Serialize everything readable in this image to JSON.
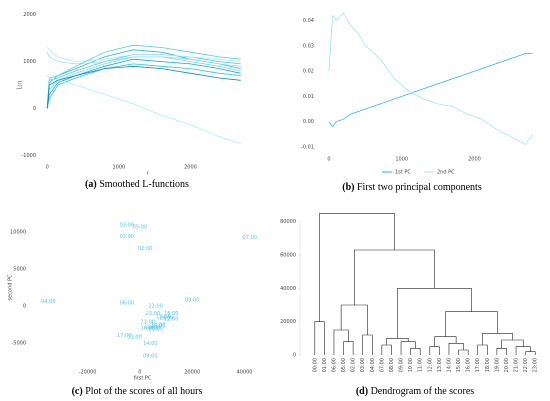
{
  "chart_data": [
    {
      "type": "line",
      "panel": "(a)",
      "caption": "Smoothed L-functions",
      "ylabel": "L̂(r)",
      "xlabel": "r",
      "xlim": [
        -100,
        2900
      ],
      "ylim": [
        -1100,
        2100
      ],
      "xticks": [
        0,
        1000,
        2000
      ],
      "yticks": [
        -1000,
        0,
        1000,
        2000
      ],
      "x": [
        0,
        30,
        150,
        400,
        800,
        1200,
        1600,
        2000,
        2400,
        2700
      ],
      "series": [
        {
          "color": "#29b6f6",
          "values": [
            0,
            550,
            700,
            850,
            1100,
            1250,
            1200,
            1050,
            950,
            850
          ]
        },
        {
          "color": "#4fc3f7",
          "values": [
            0,
            600,
            650,
            800,
            1000,
            1150,
            1150,
            1100,
            1000,
            950
          ]
        },
        {
          "color": "#81d4fa",
          "values": [
            0,
            400,
            600,
            750,
            950,
            1100,
            1100,
            1000,
            900,
            800
          ]
        },
        {
          "color": "#03a9f4",
          "values": [
            0,
            300,
            550,
            700,
            900,
            1050,
            1000,
            950,
            850,
            750
          ]
        },
        {
          "color": "#b3e5fc",
          "values": [
            1300,
            1250,
            1100,
            1000,
            1050,
            1150,
            1150,
            1100,
            1050,
            1000
          ]
        },
        {
          "color": "#90e0f5",
          "values": [
            1200,
            1100,
            1000,
            950,
            1000,
            1100,
            1100,
            1050,
            950,
            900
          ]
        },
        {
          "color": "#4dd0e1",
          "values": [
            0,
            650,
            700,
            900,
            1200,
            1350,
            1300,
            1200,
            1100,
            1050
          ]
        },
        {
          "color": "#26c6da",
          "values": [
            0,
            200,
            500,
            650,
            850,
            950,
            900,
            850,
            750,
            700
          ]
        },
        {
          "color": "#b2ebf2",
          "values": [
            700,
            650,
            600,
            500,
            300,
            100,
            -150,
            -350,
            -600,
            -750
          ]
        },
        {
          "color": "#0288d1",
          "values": [
            0,
            500,
            600,
            700,
            850,
            900,
            850,
            750,
            650,
            600
          ]
        }
      ]
    },
    {
      "type": "line",
      "panel": "(b)",
      "caption": "First two principal components",
      "xlim": [
        -150,
        2900
      ],
      "ylim": [
        -0.012,
        0.045
      ],
      "xticks": [
        0,
        1000,
        2000
      ],
      "yticks": [
        -0.01,
        {
          "value": 0,
          "label": "0.00"
        },
        0.01,
        0.02,
        0.03,
        0.04
      ],
      "x": [
        0,
        50,
        100,
        200,
        300,
        400,
        500,
        700,
        900,
        1100,
        1300,
        1500,
        1700,
        1900,
        2100,
        2300,
        2500,
        2700,
        2800
      ],
      "series": [
        {
          "name": "1st PC",
          "color": "#29b6f6",
          "values": [
            0,
            -0.002,
            0,
            0.001,
            0.003,
            0.004,
            0.005,
            0.007,
            0.009,
            0.011,
            0.013,
            0.015,
            0.017,
            0.019,
            0.021,
            0.023,
            0.025,
            0.027,
            0.027
          ]
        },
        {
          "name": "2nd PC",
          "color": "#9ee6f5",
          "values": [
            0.02,
            0.042,
            0.04,
            0.043,
            0.038,
            0.035,
            0.03,
            0.025,
            0.017,
            0.012,
            0.009,
            0.007,
            0.006,
            0.003,
            0.001,
            -0.003,
            -0.006,
            -0.009,
            -0.005
          ]
        }
      ]
    },
    {
      "type": "scatter",
      "panel": "(c)",
      "caption": "Plot of the scores of all hours",
      "xlabel": "first PC",
      "ylabel": "second PC",
      "color": "#4fc3f7",
      "xlim": [
        -42000,
        44000
      ],
      "ylim": [
        -8000,
        13000
      ],
      "xticks": [
        -20000,
        0,
        20000,
        40000
      ],
      "yticks": [
        -5000,
        0,
        5000,
        10000
      ],
      "labels": [
        "00:00",
        "01:00",
        "02:00",
        "03:00",
        "04:00",
        "05:00",
        "06:00",
        "07:00",
        "08:00",
        "09:00",
        "10:00",
        "11:00",
        "12:00",
        "13:00",
        "14:00",
        "15:00",
        "16:00",
        "17:00",
        "18:00",
        "19:00",
        "20:00",
        "21:00",
        "22:00",
        "23:00"
      ],
      "x": [
        5000,
        -5000,
        2000,
        -5000,
        -35000,
        0,
        -5000,
        42000,
        4000,
        20000,
        7000,
        -2000,
        12000,
        9000,
        4000,
        7000,
        3000,
        -6000,
        12000,
        10000,
        6000,
        3000,
        6000,
        5000
      ],
      "y": [
        -3000,
        9400,
        7800,
        11000,
        600,
        10700,
        400,
        9300,
        -6800,
        800,
        -2600,
        -4200,
        -1800,
        -1500,
        -5100,
        -2700,
        -3000,
        -4000,
        -1000,
        -1600,
        -3100,
        -2200,
        0,
        -1000
      ]
    },
    {
      "type": "dendrogram",
      "panel": "(d)",
      "caption": "Dendrogram of the scores",
      "ylim": [
        0,
        90000
      ],
      "yticks": [
        0,
        20000,
        40000,
        60000,
        80000
      ],
      "tree": {
        "height": 85000,
        "children": [
          {
            "height": 20000,
            "children": [
              "00:00",
              "01:00"
            ]
          },
          {
            "height": 63000,
            "children": [
              {
                "height": 30000,
                "children": [
                  {
                    "height": 15000,
                    "children": [
                      "06:00",
                      {
                        "height": 8000,
                        "children": [
                          "05:00",
                          "02:00"
                        ]
                      }
                    ]
                  },
                  {
                    "height": 12000,
                    "children": [
                      "03:00",
                      "04:00"
                    ]
                  }
                ]
              },
              {
                "height": 40000,
                "children": [
                  {
                    "height": 10000,
                    "children": [
                      {
                        "height": 6000,
                        "children": [
                          "07:00",
                          "08:00"
                        ]
                      },
                      {
                        "height": 8000,
                        "children": [
                          "09:00",
                          {
                            "height": 4000,
                            "children": [
                              "10:00",
                              "11:00"
                            ]
                          }
                        ]
                      }
                    ]
                  },
                  {
                    "height": 26000,
                    "children": [
                      {
                        "height": 11000,
                        "children": [
                          {
                            "height": 5000,
                            "children": [
                              "12:00",
                              "13:00"
                            ]
                          },
                          {
                            "height": 7000,
                            "children": [
                              "14:00",
                              {
                                "height": 3000,
                                "children": [
                                  "15:00",
                                  "16:00"
                                ]
                              }
                            ]
                          }
                        ]
                      },
                      {
                        "height": 13000,
                        "children": [
                          {
                            "height": 6000,
                            "children": [
                              "17:00",
                              "18:00"
                            ]
                          },
                          {
                            "height": 9000,
                            "children": [
                              {
                                "height": 4000,
                                "children": [
                                  "19:00",
                                  "20:00"
                                ]
                              },
                              {
                                "height": 5000,
                                "children": [
                                  "21:00",
                                  {
                                    "height": 2000,
                                    "children": [
                                      "22:00",
                                      "23:00"
                                    ]
                                  }
                                ]
                              }
                            ]
                          }
                        ]
                      }
                    ]
                  }
                ]
              }
            ]
          }
        ]
      }
    }
  ]
}
